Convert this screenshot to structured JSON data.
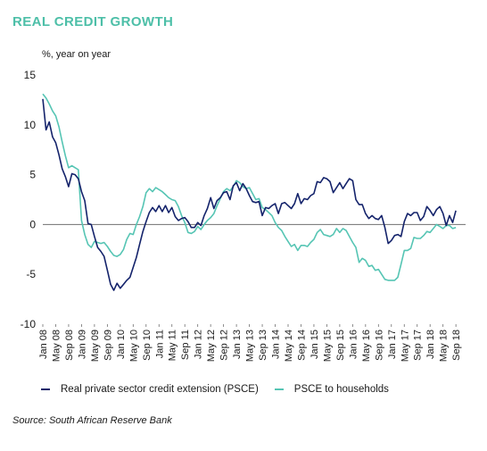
{
  "title": "REAL CREDIT GROWTH",
  "unit_label": "%, year on year",
  "source": "Source: South African Reserve Bank",
  "colors": {
    "title": "#4dbfa8",
    "psce": "#14236b",
    "households": "#56c5b4",
    "zero_line": "#6f6f6f"
  },
  "chart_data": {
    "type": "line",
    "title": "REAL CREDIT GROWTH",
    "ylabel": "%, year on year",
    "ylim": [
      -10,
      15
    ],
    "yticks": [
      15,
      10,
      5,
      0,
      -5,
      -10
    ],
    "x_range": [
      "Jan 08",
      "Dec 18"
    ],
    "xticks": [
      "Jan 08",
      "May 08",
      "Sep 08",
      "Jan 09",
      "May 09",
      "Sep 09",
      "Jan 10",
      "May 10",
      "Sep 10",
      "Jan 11",
      "May 11",
      "Sep 11",
      "Jan 12",
      "May 12",
      "Sep 12",
      "Jan 13",
      "May 13",
      "Sep 13",
      "Jan 14",
      "May 14",
      "Sep 14",
      "Jan 15",
      "May 15",
      "Sep 15",
      "Jan 16",
      "May 16",
      "Sep 16",
      "Jan 17",
      "May 17",
      "Sep 17",
      "Jan 18",
      "May 18",
      "Sep 18"
    ],
    "grid": false,
    "legend_position": "bottom",
    "series": [
      {
        "name": "Real private sector credit extension (PSCE)",
        "color": "#14236b",
        "points": [
          [
            "Jan 08",
            12.6
          ],
          [
            "Feb 08",
            9.5
          ],
          [
            "Mar 08",
            10.3
          ],
          [
            "Apr 08",
            8.8
          ],
          [
            "May 08",
            8.2
          ],
          [
            "Jun 08",
            7.0
          ],
          [
            "Jul 08",
            5.6
          ],
          [
            "Aug 08",
            4.8
          ],
          [
            "Sep 08",
            3.8
          ],
          [
            "Oct 08",
            5.1
          ],
          [
            "Nov 08",
            5.0
          ],
          [
            "Dec 08",
            4.6
          ],
          [
            "Jan 09",
            3.3
          ],
          [
            "Feb 09",
            2.4
          ],
          [
            "Mar 09",
            0.1
          ],
          [
            "Apr 09",
            0.0
          ],
          [
            "May 09",
            -1.2
          ],
          [
            "Jun 09",
            -2.3
          ],
          [
            "Jul 09",
            -2.7
          ],
          [
            "Aug 09",
            -3.2
          ],
          [
            "Sep 09",
            -4.6
          ],
          [
            "Oct 09",
            -6.0
          ],
          [
            "Nov 09",
            -6.6
          ],
          [
            "Dec 09",
            -5.9
          ],
          [
            "Jan 10",
            -6.4
          ],
          [
            "Feb 10",
            -6.0
          ],
          [
            "Mar 10",
            -5.6
          ],
          [
            "Apr 10",
            -5.3
          ],
          [
            "May 10",
            -4.3
          ],
          [
            "Jun 10",
            -3.3
          ],
          [
            "Jul 10",
            -2.0
          ],
          [
            "Aug 10",
            -0.7
          ],
          [
            "Sep 10",
            0.3
          ],
          [
            "Oct 10",
            1.2
          ],
          [
            "Nov 10",
            1.7
          ],
          [
            "Dec 10",
            1.3
          ],
          [
            "Jan 11",
            1.9
          ],
          [
            "Feb 11",
            1.3
          ],
          [
            "Mar 11",
            1.9
          ],
          [
            "Apr 11",
            1.2
          ],
          [
            "May 11",
            1.7
          ],
          [
            "Jun 11",
            0.8
          ],
          [
            "Jul 11",
            0.4
          ],
          [
            "Aug 11",
            0.6
          ],
          [
            "Sep 11",
            0.7
          ],
          [
            "Oct 11",
            0.3
          ],
          [
            "Nov 11",
            -0.3
          ],
          [
            "Dec 11",
            -0.3
          ],
          [
            "Jan 12",
            0.2
          ],
          [
            "Feb 12",
            -0.1
          ],
          [
            "Mar 12",
            0.9
          ],
          [
            "Apr 12",
            1.6
          ],
          [
            "May 12",
            2.7
          ],
          [
            "Jun 12",
            1.6
          ],
          [
            "Jul 12",
            2.4
          ],
          [
            "Aug 12",
            2.7
          ],
          [
            "Sep 12",
            3.2
          ],
          [
            "Oct 12",
            3.3
          ],
          [
            "Nov 12",
            2.5
          ],
          [
            "Dec 12",
            3.9
          ],
          [
            "Jan 13",
            4.2
          ],
          [
            "Feb 13",
            3.4
          ],
          [
            "Mar 13",
            4.1
          ],
          [
            "Apr 13",
            3.6
          ],
          [
            "May 13",
            2.9
          ],
          [
            "Jun 13",
            2.3
          ],
          [
            "Jul 13",
            2.2
          ],
          [
            "Aug 13",
            2.3
          ],
          [
            "Sep 13",
            0.9
          ],
          [
            "Oct 13",
            1.7
          ],
          [
            "Nov 13",
            1.6
          ],
          [
            "Dec 13",
            1.9
          ],
          [
            "Jan 14",
            2.1
          ],
          [
            "Feb 14",
            1.1
          ],
          [
            "Mar 14",
            2.1
          ],
          [
            "Apr 14",
            2.2
          ],
          [
            "May 14",
            1.9
          ],
          [
            "Jun 14",
            1.6
          ],
          [
            "Jul 14",
            2.1
          ],
          [
            "Aug 14",
            3.1
          ],
          [
            "Sep 14",
            2.1
          ],
          [
            "Oct 14",
            2.6
          ],
          [
            "Nov 14",
            2.5
          ],
          [
            "Dec 14",
            2.9
          ],
          [
            "Jan 15",
            3.1
          ],
          [
            "Feb 15",
            4.3
          ],
          [
            "Mar 15",
            4.2
          ],
          [
            "Apr 15",
            4.7
          ],
          [
            "May 15",
            4.6
          ],
          [
            "Jun 15",
            4.3
          ],
          [
            "Jul 15",
            3.2
          ],
          [
            "Aug 15",
            3.7
          ],
          [
            "Sep 15",
            4.2
          ],
          [
            "Oct 15",
            3.6
          ],
          [
            "Nov 15",
            4.1
          ],
          [
            "Dec 15",
            4.6
          ],
          [
            "Jan 16",
            4.4
          ],
          [
            "Feb 16",
            2.5
          ],
          [
            "Mar 16",
            2.0
          ],
          [
            "Apr 16",
            2.0
          ],
          [
            "May 16",
            1.1
          ],
          [
            "Jun 16",
            0.6
          ],
          [
            "Jul 16",
            0.9
          ],
          [
            "Aug 16",
            0.6
          ],
          [
            "Sep 16",
            0.5
          ],
          [
            "Oct 16",
            0.9
          ],
          [
            "Nov 16",
            -0.3
          ],
          [
            "Dec 16",
            -1.9
          ],
          [
            "Jan 17",
            -1.6
          ],
          [
            "Feb 17",
            -1.1
          ],
          [
            "Mar 17",
            -1.0
          ],
          [
            "Apr 17",
            -1.2
          ],
          [
            "May 17",
            0.3
          ],
          [
            "Jun 17",
            1.1
          ],
          [
            "Jul 17",
            0.9
          ],
          [
            "Aug 17",
            1.2
          ],
          [
            "Sep 17",
            1.2
          ],
          [
            "Oct 17",
            0.4
          ],
          [
            "Nov 17",
            0.8
          ],
          [
            "Dec 17",
            1.8
          ],
          [
            "Jan 18",
            1.4
          ],
          [
            "Feb 18",
            0.9
          ],
          [
            "Mar 18",
            1.5
          ],
          [
            "Apr 18",
            1.8
          ],
          [
            "May 18",
            1.1
          ],
          [
            "Jun 18",
            -0.1
          ],
          [
            "Jul 18",
            0.9
          ],
          [
            "Aug 18",
            0.2
          ],
          [
            "Sep 18",
            1.4
          ]
        ]
      },
      {
        "name": "PSCE to households",
        "color": "#56c5b4",
        "points": [
          [
            "Jan 08",
            13.1
          ],
          [
            "Feb 08",
            12.7
          ],
          [
            "Mar 08",
            12.1
          ],
          [
            "Apr 08",
            11.4
          ],
          [
            "May 08",
            10.9
          ],
          [
            "Jun 08",
            9.8
          ],
          [
            "Jul 08",
            8.3
          ],
          [
            "Aug 08",
            6.9
          ],
          [
            "Sep 08",
            5.7
          ],
          [
            "Oct 08",
            5.9
          ],
          [
            "Nov 08",
            5.7
          ],
          [
            "Dec 08",
            5.5
          ],
          [
            "Jan 09",
            0.4
          ],
          [
            "Feb 09",
            -1.0
          ],
          [
            "Mar 09",
            -2.0
          ],
          [
            "Apr 09",
            -2.3
          ],
          [
            "May 09",
            -1.7
          ],
          [
            "Jun 09",
            -1.8
          ],
          [
            "Jul 09",
            -1.9
          ],
          [
            "Aug 09",
            -1.8
          ],
          [
            "Sep 09",
            -2.2
          ],
          [
            "Oct 09",
            -2.7
          ],
          [
            "Nov 09",
            -3.1
          ],
          [
            "Dec 09",
            -3.2
          ],
          [
            "Jan 10",
            -3.0
          ],
          [
            "Feb 10",
            -2.5
          ],
          [
            "Mar 10",
            -1.5
          ],
          [
            "Apr 10",
            -0.9
          ],
          [
            "May 10",
            -1.0
          ],
          [
            "Jun 10",
            0.0
          ],
          [
            "Jul 10",
            0.8
          ],
          [
            "Aug 10",
            1.8
          ],
          [
            "Sep 10",
            3.2
          ],
          [
            "Oct 10",
            3.6
          ],
          [
            "Nov 10",
            3.3
          ],
          [
            "Dec 10",
            3.7
          ],
          [
            "Jan 11",
            3.5
          ],
          [
            "Feb 11",
            3.3
          ],
          [
            "Mar 11",
            3.0
          ],
          [
            "Apr 11",
            2.7
          ],
          [
            "May 11",
            2.5
          ],
          [
            "Jun 11",
            2.4
          ],
          [
            "Jul 11",
            1.8
          ],
          [
            "Aug 11",
            0.9
          ],
          [
            "Sep 11",
            0.2
          ],
          [
            "Oct 11",
            -0.8
          ],
          [
            "Nov 11",
            -0.9
          ],
          [
            "Dec 11",
            -0.7
          ],
          [
            "Jan 12",
            -0.2
          ],
          [
            "Feb 12",
            -0.5
          ],
          [
            "Mar 12",
            0.0
          ],
          [
            "Apr 12",
            0.4
          ],
          [
            "May 12",
            0.7
          ],
          [
            "Jun 12",
            1.1
          ],
          [
            "Jul 12",
            1.9
          ],
          [
            "Aug 12",
            2.6
          ],
          [
            "Sep 12",
            3.3
          ],
          [
            "Oct 12",
            3.6
          ],
          [
            "Nov 12",
            3.4
          ],
          [
            "Dec 12",
            3.8
          ],
          [
            "Jan 13",
            4.4
          ],
          [
            "Feb 13",
            4.2
          ],
          [
            "Mar 13",
            3.8
          ],
          [
            "Apr 13",
            3.6
          ],
          [
            "May 13",
            3.7
          ],
          [
            "Jun 13",
            3.1
          ],
          [
            "Jul 13",
            2.5
          ],
          [
            "Aug 13",
            2.6
          ],
          [
            "Sep 13",
            1.7
          ],
          [
            "Oct 13",
            1.5
          ],
          [
            "Nov 13",
            1.2
          ],
          [
            "Dec 13",
            0.9
          ],
          [
            "Jan 14",
            0.2
          ],
          [
            "Feb 14",
            -0.3
          ],
          [
            "Mar 14",
            -0.6
          ],
          [
            "Apr 14",
            -1.2
          ],
          [
            "May 14",
            -1.7
          ],
          [
            "Jun 14",
            -2.2
          ],
          [
            "Jul 14",
            -2.0
          ],
          [
            "Aug 14",
            -2.6
          ],
          [
            "Sep 14",
            -2.1
          ],
          [
            "Oct 14",
            -2.1
          ],
          [
            "Nov 14",
            -2.2
          ],
          [
            "Dec 14",
            -1.8
          ],
          [
            "Jan 15",
            -1.5
          ],
          [
            "Feb 15",
            -0.8
          ],
          [
            "Mar 15",
            -0.5
          ],
          [
            "Apr 15",
            -1.0
          ],
          [
            "May 15",
            -1.1
          ],
          [
            "Jun 15",
            -1.2
          ],
          [
            "Jul 15",
            -1.0
          ],
          [
            "Aug 15",
            -0.4
          ],
          [
            "Sep 15",
            -0.8
          ],
          [
            "Oct 15",
            -0.4
          ],
          [
            "Nov 15",
            -0.6
          ],
          [
            "Dec 15",
            -1.2
          ],
          [
            "Jan 16",
            -1.8
          ],
          [
            "Feb 16",
            -2.3
          ],
          [
            "Mar 16",
            -3.8
          ],
          [
            "Apr 16",
            -3.4
          ],
          [
            "May 16",
            -3.6
          ],
          [
            "Jun 16",
            -4.2
          ],
          [
            "Jul 16",
            -4.1
          ],
          [
            "Aug 16",
            -4.6
          ],
          [
            "Sep 16",
            -4.5
          ],
          [
            "Oct 16",
            -5.0
          ],
          [
            "Nov 16",
            -5.5
          ],
          [
            "Dec 16",
            -5.6
          ],
          [
            "Jan 17",
            -5.6
          ],
          [
            "Feb 17",
            -5.6
          ],
          [
            "Mar 17",
            -5.3
          ],
          [
            "Apr 17",
            -4.0
          ],
          [
            "May 17",
            -2.6
          ],
          [
            "Jun 17",
            -2.6
          ],
          [
            "Jul 17",
            -2.4
          ],
          [
            "Aug 17",
            -1.3
          ],
          [
            "Sep 17",
            -1.4
          ],
          [
            "Oct 17",
            -1.4
          ],
          [
            "Nov 17",
            -1.1
          ],
          [
            "Dec 17",
            -0.7
          ],
          [
            "Jan 18",
            -0.8
          ],
          [
            "Feb 18",
            -0.4
          ],
          [
            "Mar 18",
            0.0
          ],
          [
            "Apr 18",
            -0.2
          ],
          [
            "May 18",
            -0.4
          ],
          [
            "Jun 18",
            -0.1
          ],
          [
            "Jul 18",
            -0.1
          ],
          [
            "Aug 18",
            -0.4
          ],
          [
            "Sep 18",
            -0.3
          ]
        ]
      }
    ]
  }
}
